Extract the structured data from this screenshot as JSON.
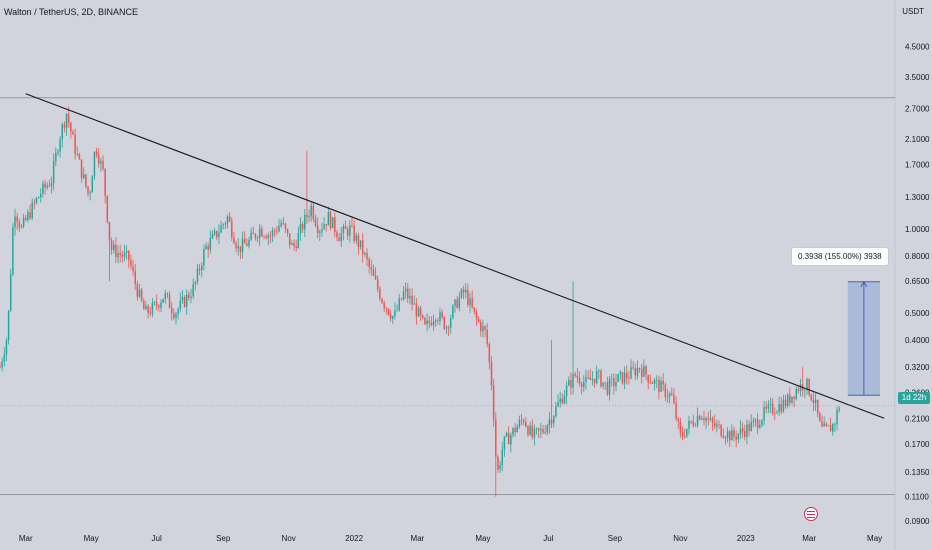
{
  "header": {
    "title": "Walton / TetherUS, 2D, BINANCE",
    "unit": "USDT"
  },
  "colors": {
    "up": "#26a69a",
    "down": "#ef5350",
    "trendline": "#131722",
    "horizontal_line": "#9598a1",
    "box_fill": "#7e9bd8",
    "box_edge": "#4a5fa8",
    "price_tag": "#26a69a"
  },
  "chart_data": {
    "type": "candlestick",
    "title": "",
    "xlabel": "",
    "ylabel": "",
    "y_scale": "log",
    "x_range": [
      "2021-02-05",
      "2023-05-20"
    ],
    "y_range": [
      0.085,
      5.6
    ],
    "x_ticks": [
      {
        "date": "2021-03-01",
        "label": "Mar"
      },
      {
        "date": "2021-05-01",
        "label": "May"
      },
      {
        "date": "2021-07-01",
        "label": "Jul"
      },
      {
        "date": "2021-09-01",
        "label": "Sep"
      },
      {
        "date": "2021-11-01",
        "label": "Nov"
      },
      {
        "date": "2022-01-01",
        "label": "2022"
      },
      {
        "date": "2022-03-01",
        "label": "Mar"
      },
      {
        "date": "2022-05-01",
        "label": "May"
      },
      {
        "date": "2022-07-01",
        "label": "Jul"
      },
      {
        "date": "2022-09-01",
        "label": "Sep"
      },
      {
        "date": "2022-11-01",
        "label": "Nov"
      },
      {
        "date": "2023-01-01",
        "label": "2023"
      },
      {
        "date": "2023-03-01",
        "label": "Mar"
      },
      {
        "date": "2023-05-01",
        "label": "May"
      }
    ],
    "y_ticks": [
      {
        "value": 4.5,
        "label": "4.5000"
      },
      {
        "value": 3.5,
        "label": "3.5000"
      },
      {
        "value": 2.7,
        "label": "2.7000"
      },
      {
        "value": 2.1,
        "label": "2.1000"
      },
      {
        "value": 1.7,
        "label": "1.7000"
      },
      {
        "value": 1.3,
        "label": "1.3000"
      },
      {
        "value": 1.0,
        "label": "1.0000"
      },
      {
        "value": 0.8,
        "label": "0.8000"
      },
      {
        "value": 0.65,
        "label": "0.6500"
      },
      {
        "value": 0.5,
        "label": "0.5000"
      },
      {
        "value": 0.4,
        "label": "0.4000"
      },
      {
        "value": 0.32,
        "label": "0.3200"
      },
      {
        "value": 0.26,
        "label": "0.2600"
      },
      {
        "value": 0.21,
        "label": "0.2100"
      },
      {
        "value": 0.17,
        "label": "0.1700"
      },
      {
        "value": 0.135,
        "label": "0.1350"
      },
      {
        "value": 0.11,
        "label": "0.1100"
      },
      {
        "value": 0.09,
        "label": "0.0900"
      }
    ],
    "price_path": [
      [
        "2021-02-05",
        0.32
      ],
      [
        "2021-02-12",
        0.42
      ],
      [
        "2021-02-18",
        1.2
      ],
      [
        "2021-02-25",
        1.0
      ],
      [
        "2021-03-05",
        1.15
      ],
      [
        "2021-03-15",
        1.35
      ],
      [
        "2021-03-25",
        1.5
      ],
      [
        "2021-04-01",
        2.1
      ],
      [
        "2021-04-08",
        2.6
      ],
      [
        "2021-04-15",
        2.0
      ],
      [
        "2021-04-22",
        1.6
      ],
      [
        "2021-04-29",
        1.3
      ],
      [
        "2021-05-05",
        2.0
      ],
      [
        "2021-05-12",
        1.6
      ],
      [
        "2021-05-19",
        0.85
      ],
      [
        "2021-05-26",
        0.82
      ],
      [
        "2021-06-05",
        0.78
      ],
      [
        "2021-06-12",
        0.62
      ],
      [
        "2021-06-20",
        0.5
      ],
      [
        "2021-06-28",
        0.52
      ],
      [
        "2021-07-08",
        0.58
      ],
      [
        "2021-07-18",
        0.5
      ],
      [
        "2021-07-28",
        0.56
      ],
      [
        "2021-08-05",
        0.62
      ],
      [
        "2021-08-15",
        0.85
      ],
      [
        "2021-08-25",
        0.95
      ],
      [
        "2021-09-05",
        1.1
      ],
      [
        "2021-09-15",
        0.85
      ],
      [
        "2021-09-25",
        0.9
      ],
      [
        "2021-10-05",
        1.0
      ],
      [
        "2021-10-15",
        0.95
      ],
      [
        "2021-10-25",
        1.05
      ],
      [
        "2021-11-05",
        0.85
      ],
      [
        "2021-11-15",
        1.05
      ],
      [
        "2021-11-22",
        1.2
      ],
      [
        "2021-11-29",
        1.0
      ],
      [
        "2021-12-08",
        1.1
      ],
      [
        "2021-12-18",
        0.95
      ],
      [
        "2021-12-28",
        1.0
      ],
      [
        "2022-01-08",
        0.85
      ],
      [
        "2022-01-18",
        0.68
      ],
      [
        "2022-01-28",
        0.55
      ],
      [
        "2022-02-07",
        0.48
      ],
      [
        "2022-02-17",
        0.6
      ],
      [
        "2022-02-27",
        0.52
      ],
      [
        "2022-03-08",
        0.44
      ],
      [
        "2022-03-18",
        0.5
      ],
      [
        "2022-03-28",
        0.45
      ],
      [
        "2022-04-07",
        0.55
      ],
      [
        "2022-04-14",
        0.6
      ],
      [
        "2022-04-24",
        0.48
      ],
      [
        "2022-05-04",
        0.42
      ],
      [
        "2022-05-10",
        0.26
      ],
      [
        "2022-05-14",
        0.13
      ],
      [
        "2022-05-20",
        0.17
      ],
      [
        "2022-05-30",
        0.19
      ],
      [
        "2022-06-08",
        0.21
      ],
      [
        "2022-06-16",
        0.18
      ],
      [
        "2022-06-26",
        0.19
      ],
      [
        "2022-07-06",
        0.22
      ],
      [
        "2022-07-16",
        0.26
      ],
      [
        "2022-07-26",
        0.3
      ],
      [
        "2022-08-05",
        0.28
      ],
      [
        "2022-08-15",
        0.3
      ],
      [
        "2022-08-25",
        0.27
      ],
      [
        "2022-09-04",
        0.29
      ],
      [
        "2022-09-14",
        0.3
      ],
      [
        "2022-09-24",
        0.32
      ],
      [
        "2022-10-04",
        0.29
      ],
      [
        "2022-10-14",
        0.27
      ],
      [
        "2022-10-24",
        0.25
      ],
      [
        "2022-11-01",
        0.18
      ],
      [
        "2022-11-10",
        0.2
      ],
      [
        "2022-11-20",
        0.22
      ],
      [
        "2022-11-30",
        0.2
      ],
      [
        "2022-12-10",
        0.19
      ],
      [
        "2022-12-20",
        0.18
      ],
      [
        "2022-12-30",
        0.19
      ],
      [
        "2023-01-09",
        0.2
      ],
      [
        "2023-01-19",
        0.22
      ],
      [
        "2023-01-29",
        0.23
      ],
      [
        "2023-02-08",
        0.24
      ],
      [
        "2023-02-18",
        0.27
      ],
      [
        "2023-02-26",
        0.28
      ],
      [
        "2023-03-06",
        0.24
      ],
      [
        "2023-03-12",
        0.19
      ],
      [
        "2023-03-18",
        0.19
      ],
      [
        "2023-03-24",
        0.2
      ],
      [
        "2023-03-30",
        0.24
      ]
    ],
    "spikes": [
      {
        "date": "2021-11-19",
        "high": 1.9
      },
      {
        "date": "2022-07-24",
        "high": 0.65
      },
      {
        "date": "2022-07-04",
        "high": 0.4
      },
      {
        "date": "2023-02-23",
        "high": 0.32
      },
      {
        "date": "2022-05-14",
        "low": 0.11
      },
      {
        "date": "2021-05-18",
        "low": 0.65
      }
    ],
    "trendline": {
      "start": [
        "2021-03-01",
        3.05
      ],
      "end": [
        "2023-05-10",
        0.21
      ]
    },
    "horizontal_lines": [
      2.95,
      0.112
    ],
    "measure_box": {
      "start_date": "2023-04-06",
      "end_date": "2023-05-06",
      "from": 0.254,
      "to": 0.647,
      "label": "0.3938 (155.00%) 3938"
    },
    "last_price_tag": {
      "value": 0.2335,
      "label": "1d 22h"
    },
    "event_marker": {
      "date": "2023-04-10",
      "icon": "us-flag-icon"
    }
  }
}
